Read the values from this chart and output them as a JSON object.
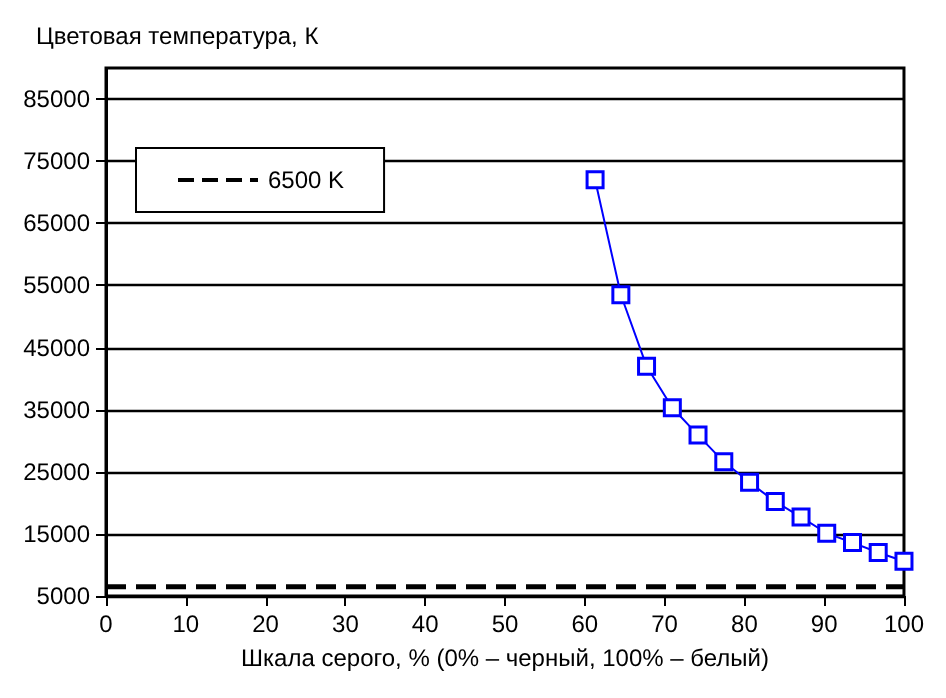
{
  "chart_data": {
    "type": "line",
    "xlabel": "Шкала серого, % (0% – черный, 100% – белый)",
    "ylabel": "Цветовая температура, К",
    "x": [
      61.29,
      64.52,
      67.74,
      70.97,
      74.19,
      77.42,
      80.65,
      83.87,
      87.1,
      90.32,
      93.55,
      96.77,
      100
    ],
    "series": [
      {
        "color": "#0000ff",
        "values": [
          72000,
          53500,
          42000,
          35300,
          30900,
          26600,
          23300,
          20200,
          17700,
          15100,
          13600,
          12000,
          10600
        ]
      }
    ],
    "ref_lines": [
      {
        "axis": "y",
        "value": 6500,
        "label": "6500 K",
        "color": "#000000",
        "line_style": "dashed"
      }
    ],
    "xlim": [
      0,
      100
    ],
    "xticks": [
      0,
      10,
      20,
      30,
      40,
      50,
      60,
      70,
      80,
      90,
      100
    ],
    "ylim": [
      5000,
      90000
    ],
    "yticks": [
      5000,
      15000,
      25000,
      35000,
      45000,
      55000,
      65000,
      75000,
      85000
    ],
    "grid": "y",
    "legend": "top left",
    "marker": "square",
    "line_style": "solid"
  }
}
